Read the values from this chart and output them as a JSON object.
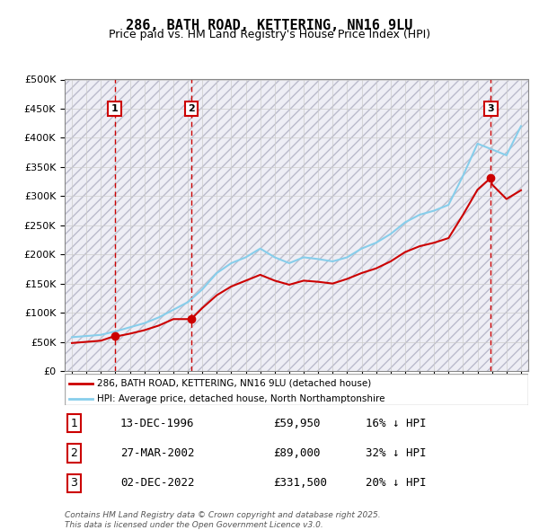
{
  "title": "286, BATH ROAD, KETTERING, NN16 9LU",
  "subtitle": "Price paid vs. HM Land Registry's House Price Index (HPI)",
  "legend_line1": "286, BATH ROAD, KETTERING, NN16 9LU (detached house)",
  "legend_line2": "HPI: Average price, detached house, North Northamptonshire",
  "footer": "Contains HM Land Registry data © Crown copyright and database right 2025.\nThis data is licensed under the Open Government Licence v3.0.",
  "table": [
    [
      "1",
      "13-DEC-1996",
      "£59,950",
      "16% ↓ HPI"
    ],
    [
      "2",
      "27-MAR-2002",
      "£89,000",
      "32% ↓ HPI"
    ],
    [
      "3",
      "02-DEC-2022",
      "£331,500",
      "20% ↓ HPI"
    ]
  ],
  "purchase_dates": [
    1996.95,
    2002.23,
    2022.92
  ],
  "purchase_prices": [
    59950,
    89000,
    331500
  ],
  "purchase_labels": [
    "1",
    "2",
    "3"
  ],
  "hpi_years": [
    1994,
    1995,
    1996,
    1997,
    1998,
    1999,
    2000,
    2001,
    2002,
    2003,
    2004,
    2005,
    2006,
    2007,
    2008,
    2009,
    2010,
    2011,
    2012,
    2013,
    2014,
    2015,
    2016,
    2017,
    2018,
    2019,
    2020,
    2021,
    2022,
    2023,
    2024,
    2025
  ],
  "hpi_values": [
    58000,
    60000,
    62000,
    68000,
    75000,
    82000,
    92000,
    105000,
    118000,
    140000,
    168000,
    185000,
    195000,
    210000,
    195000,
    185000,
    195000,
    192000,
    188000,
    195000,
    210000,
    220000,
    235000,
    255000,
    268000,
    275000,
    285000,
    335000,
    390000,
    380000,
    370000,
    420000
  ],
  "red_line_years": [
    1994,
    1995,
    1996,
    1996.95,
    1997,
    1998,
    1999,
    2000,
    2001,
    2002,
    2002.23,
    2003,
    2004,
    2005,
    2006,
    2007,
    2008,
    2009,
    2010,
    2011,
    2012,
    2013,
    2014,
    2015,
    2016,
    2017,
    2018,
    2019,
    2020,
    2021,
    2022,
    2022.92,
    2023,
    2024,
    2025
  ],
  "red_line_values": [
    48000,
    50000,
    52000,
    59950,
    59000,
    64000,
    70000,
    78000,
    89000,
    89000,
    89000,
    108000,
    130000,
    145000,
    155000,
    165000,
    155000,
    148000,
    155000,
    153000,
    150000,
    158000,
    168000,
    176000,
    188000,
    204000,
    214000,
    220000,
    228000,
    268000,
    311000,
    331500,
    320000,
    295000,
    310000
  ],
  "vline_dates": [
    1996.95,
    2002.23,
    2022.92
  ],
  "ylim": [
    0,
    500000
  ],
  "xlim_min": 1993.5,
  "xlim_max": 2025.5,
  "hpi_color": "#87CEEB",
  "red_color": "#CC0000",
  "vline_color": "#CC0000",
  "bg_hatch_color": "#E8E8F0",
  "grid_color": "#CCCCCC",
  "label_box_color": "#CC0000"
}
